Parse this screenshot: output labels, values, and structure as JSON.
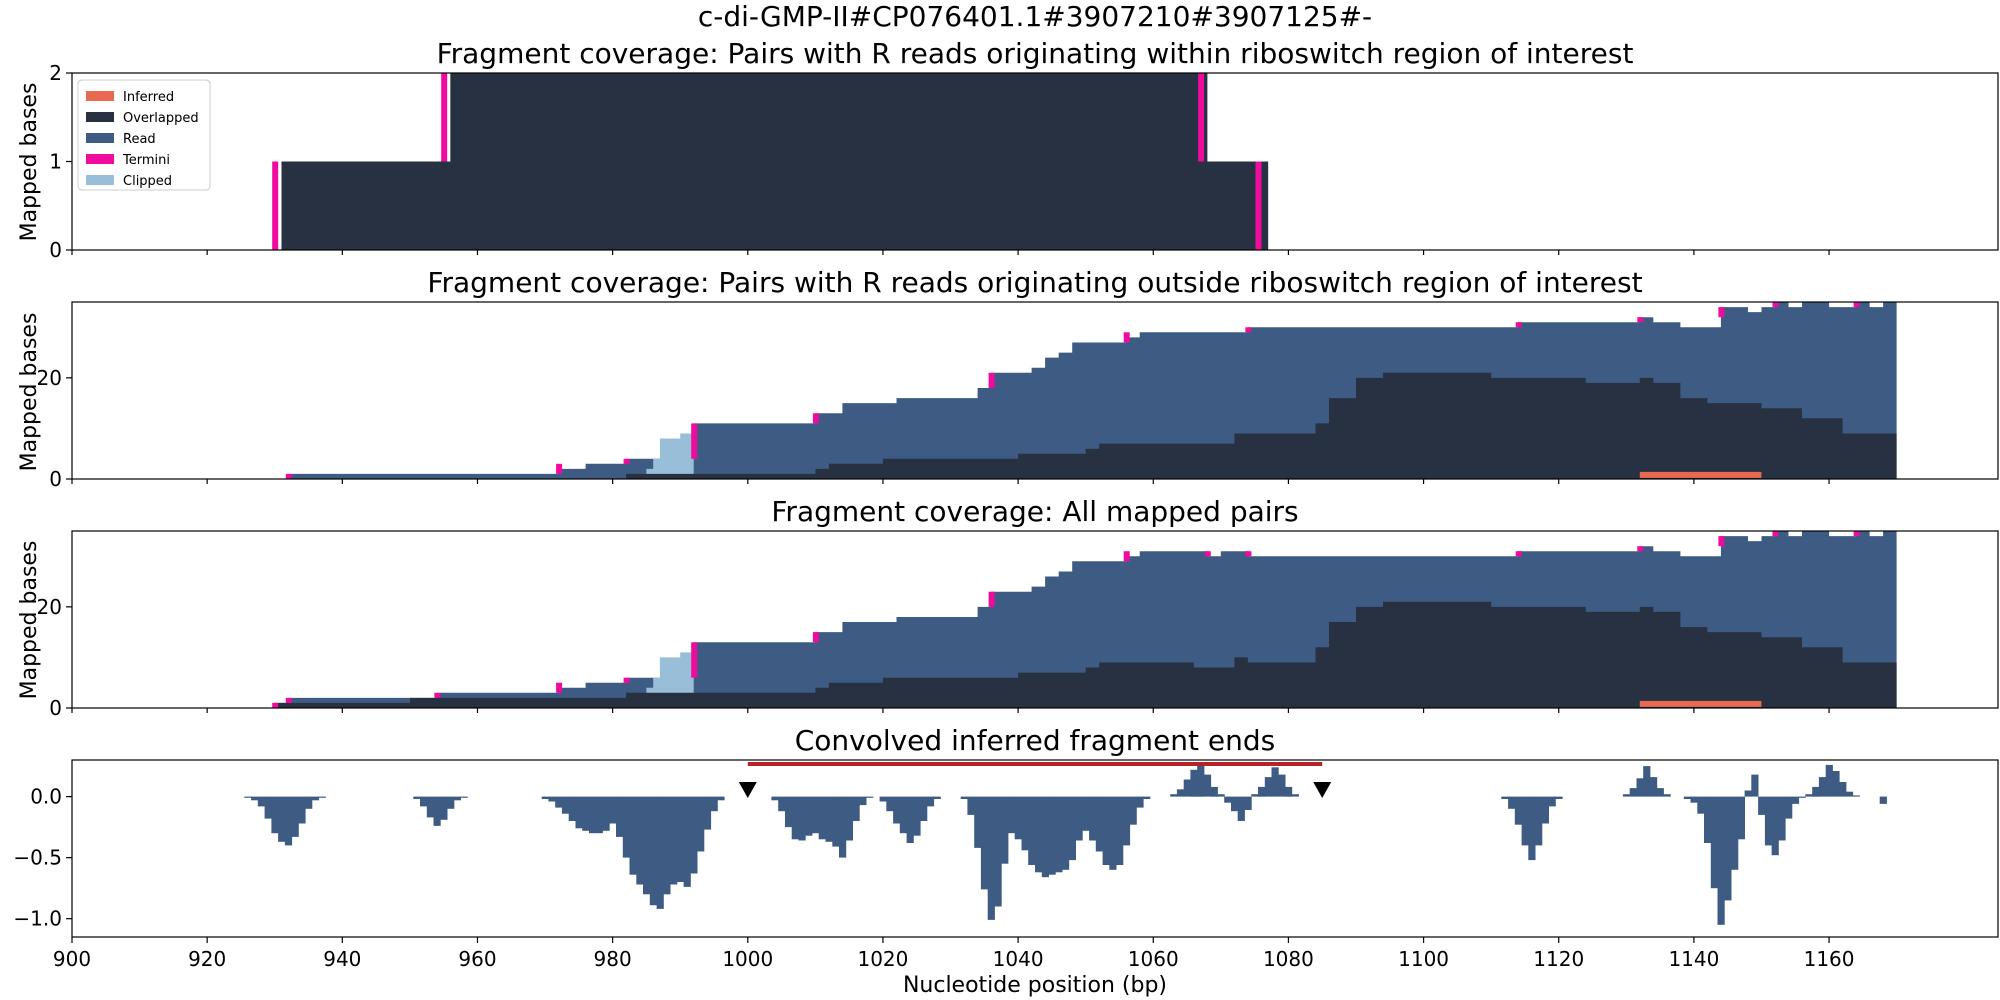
{
  "figure": {
    "suptitle": "c-di-GMP-II#CP076401.1#3907210#3907125#-",
    "xlabel": "Nucleotide position (bp)",
    "xlim": [
      900,
      1185
    ],
    "xticks": [
      900,
      920,
      940,
      960,
      980,
      1000,
      1020,
      1040,
      1060,
      1080,
      1100,
      1120,
      1140,
      1160
    ],
    "colors": {
      "inferred": "#E8694F",
      "overlapped": "#273142",
      "read": "#3E5C83",
      "termini": "#EE0B9D",
      "clipped": "#99BED7",
      "region_bar": "#B5222A",
      "marker": "#000000"
    }
  },
  "legend": [
    "Inferred",
    "Overlapped",
    "Read",
    "Termini",
    "Clipped"
  ],
  "chart_data": [
    {
      "type": "area",
      "title": "Fragment coverage: Pairs with R reads originating within riboswitch region of interest",
      "ylabel": "Mapped bases",
      "ylim": [
        0,
        2
      ],
      "yticks": [
        0,
        1,
        2
      ],
      "overlapped": [
        [
          930.5,
          0
        ],
        [
          931,
          1
        ],
        [
          955,
          1
        ],
        [
          956,
          2
        ],
        [
          1067,
          2
        ],
        [
          1068,
          1
        ],
        [
          1076,
          1
        ],
        [
          1077,
          0
        ]
      ],
      "read": [
        [
          930.5,
          0
        ],
        [
          931,
          1
        ],
        [
          955,
          1
        ],
        [
          956,
          2
        ],
        [
          1067,
          2
        ],
        [
          1068,
          1
        ],
        [
          1076,
          1
        ],
        [
          1077,
          0
        ]
      ],
      "clipped": [],
      "inferred": [],
      "termini": [
        [
          930,
          0,
          1
        ],
        [
          955,
          1,
          2
        ],
        [
          1067,
          1,
          2
        ],
        [
          1075.5,
          0,
          1
        ]
      ]
    },
    {
      "type": "area",
      "title": "Fragment coverage: Pairs with R reads originating outside riboswitch region of interest",
      "ylabel": "Mapped bases",
      "ylim": [
        0,
        35
      ],
      "yticks": [
        0,
        20
      ],
      "read": [
        [
          932,
          1
        ],
        [
          972,
          2
        ],
        [
          976,
          3
        ],
        [
          982,
          4
        ],
        [
          992,
          11
        ],
        [
          1010,
          13
        ],
        [
          1014,
          15
        ],
        [
          1022,
          16
        ],
        [
          1034,
          18
        ],
        [
          1036,
          21
        ],
        [
          1042,
          22
        ],
        [
          1044,
          24
        ],
        [
          1046,
          25
        ],
        [
          1048,
          27
        ],
        [
          1056,
          28
        ],
        [
          1058,
          29
        ],
        [
          1074,
          30
        ],
        [
          1114,
          31
        ],
        [
          1132,
          32
        ],
        [
          1134,
          31
        ],
        [
          1138,
          30
        ],
        [
          1144,
          34
        ],
        [
          1148,
          33
        ],
        [
          1150,
          34
        ],
        [
          1152,
          35
        ],
        [
          1154,
          34
        ],
        [
          1156,
          35
        ],
        [
          1160,
          34
        ],
        [
          1164,
          35
        ],
        [
          1166,
          34
        ],
        [
          1168,
          35
        ]
      ],
      "overlapped": [
        [
          932,
          0
        ],
        [
          950,
          0
        ],
        [
          982,
          1
        ],
        [
          1010,
          2
        ],
        [
          1012,
          3
        ],
        [
          1020,
          4
        ],
        [
          1040,
          5
        ],
        [
          1050,
          6
        ],
        [
          1052,
          7
        ],
        [
          1072,
          9
        ],
        [
          1084,
          11
        ],
        [
          1086,
          16
        ],
        [
          1090,
          20
        ],
        [
          1094,
          21
        ],
        [
          1110,
          20
        ],
        [
          1124,
          19
        ],
        [
          1132,
          20
        ],
        [
          1134,
          19
        ],
        [
          1138,
          16
        ],
        [
          1142,
          15
        ],
        [
          1150,
          14
        ],
        [
          1156,
          12
        ],
        [
          1162,
          9
        ]
      ],
      "clipped": [
        [
          985,
          2
        ],
        [
          986,
          4
        ],
        [
          987,
          8
        ],
        [
          990,
          9
        ],
        [
          992,
          0
        ]
      ],
      "inferred": [
        [
          1132,
          1
        ],
        [
          1150,
          1
        ]
      ],
      "termini": [
        [
          932,
          0,
          1
        ],
        [
          972,
          1,
          3
        ],
        [
          982,
          3,
          4
        ],
        [
          992,
          4,
          11
        ],
        [
          1010,
          11,
          13
        ],
        [
          1036,
          18,
          21
        ],
        [
          1056,
          27,
          29
        ],
        [
          1074,
          29,
          30
        ],
        [
          1114,
          30,
          31
        ],
        [
          1132,
          31,
          32
        ],
        [
          1144,
          32,
          34
        ],
        [
          1152,
          34,
          35
        ],
        [
          1164,
          34,
          35
        ]
      ]
    },
    {
      "type": "area",
      "title": "Fragment coverage: All mapped pairs",
      "ylabel": "Mapped bases",
      "ylim": [
        0,
        35
      ],
      "yticks": [
        0,
        20
      ],
      "read": [
        [
          930,
          1
        ],
        [
          932,
          2
        ],
        [
          954,
          3
        ],
        [
          972,
          4
        ],
        [
          976,
          5
        ],
        [
          982,
          6
        ],
        [
          992,
          13
        ],
        [
          1010,
          15
        ],
        [
          1014,
          17
        ],
        [
          1022,
          18
        ],
        [
          1034,
          20
        ],
        [
          1036,
          23
        ],
        [
          1042,
          24
        ],
        [
          1044,
          26
        ],
        [
          1046,
          27
        ],
        [
          1048,
          29
        ],
        [
          1056,
          30
        ],
        [
          1058,
          31
        ],
        [
          1068,
          30
        ],
        [
          1070,
          31
        ],
        [
          1074,
          30
        ],
        [
          1076,
          30
        ],
        [
          1114,
          31
        ],
        [
          1132,
          32
        ],
        [
          1134,
          31
        ],
        [
          1138,
          30
        ],
        [
          1144,
          34
        ],
        [
          1148,
          33
        ],
        [
          1150,
          34
        ],
        [
          1152,
          35
        ],
        [
          1154,
          34
        ],
        [
          1156,
          35
        ],
        [
          1160,
          34
        ],
        [
          1164,
          35
        ],
        [
          1166,
          34
        ],
        [
          1168,
          35
        ]
      ],
      "overlapped": [
        [
          930,
          1
        ],
        [
          950,
          2
        ],
        [
          982,
          3
        ],
        [
          1010,
          4
        ],
        [
          1012,
          5
        ],
        [
          1020,
          6
        ],
        [
          1040,
          7
        ],
        [
          1050,
          8
        ],
        [
          1052,
          9
        ],
        [
          1066,
          8
        ],
        [
          1072,
          10
        ],
        [
          1074,
          9
        ],
        [
          1084,
          12
        ],
        [
          1086,
          17
        ],
        [
          1090,
          20
        ],
        [
          1094,
          21
        ],
        [
          1110,
          20
        ],
        [
          1124,
          19
        ],
        [
          1132,
          20
        ],
        [
          1134,
          19
        ],
        [
          1138,
          16
        ],
        [
          1142,
          15
        ],
        [
          1150,
          14
        ],
        [
          1156,
          12
        ],
        [
          1162,
          9
        ]
      ],
      "clipped": [
        [
          985,
          4
        ],
        [
          986,
          6
        ],
        [
          987,
          10
        ],
        [
          990,
          11
        ],
        [
          992,
          0
        ]
      ],
      "inferred": [
        [
          1132,
          1
        ],
        [
          1150,
          1
        ]
      ],
      "termini": [
        [
          930,
          0,
          1
        ],
        [
          932,
          1,
          2
        ],
        [
          954,
          2,
          3
        ],
        [
          972,
          3,
          5
        ],
        [
          982,
          5,
          6
        ],
        [
          992,
          6,
          13
        ],
        [
          1010,
          13,
          15
        ],
        [
          1036,
          20,
          23
        ],
        [
          1056,
          29,
          31
        ],
        [
          1068,
          30,
          31
        ],
        [
          1074,
          30,
          31
        ],
        [
          1114,
          30,
          31
        ],
        [
          1132,
          31,
          32
        ],
        [
          1144,
          32,
          34
        ],
        [
          1152,
          34,
          35
        ],
        [
          1164,
          34,
          35
        ]
      ]
    },
    {
      "type": "bar",
      "title": "Convolved inferred fragment ends",
      "ylabel": "",
      "ylim": [
        -1.15,
        0.3
      ],
      "yticks": [
        -1.0,
        -0.5,
        0.0
      ],
      "ytick_labels": [
        "−1.0",
        "−0.5",
        "0.0"
      ],
      "region_bar": [
        1000,
        1085
      ],
      "markers": [
        1000,
        1085
      ],
      "bins": [
        [
          926,
          -0.01
        ],
        [
          927,
          -0.03
        ],
        [
          928,
          -0.08
        ],
        [
          929,
          -0.18
        ],
        [
          930,
          -0.3
        ],
        [
          931,
          -0.37
        ],
        [
          932,
          -0.4
        ],
        [
          933,
          -0.33
        ],
        [
          934,
          -0.22
        ],
        [
          935,
          -0.1
        ],
        [
          936,
          -0.03
        ],
        [
          937,
          -0.01
        ],
        [
          951,
          -0.02
        ],
        [
          952,
          -0.08
        ],
        [
          953,
          -0.17
        ],
        [
          954,
          -0.24
        ],
        [
          955,
          -0.19
        ],
        [
          956,
          -0.1
        ],
        [
          957,
          -0.03
        ],
        [
          958,
          -0.01
        ],
        [
          970,
          -0.02
        ],
        [
          971,
          -0.04
        ],
        [
          972,
          -0.09
        ],
        [
          973,
          -0.14
        ],
        [
          974,
          -0.2
        ],
        [
          975,
          -0.26
        ],
        [
          976,
          -0.28
        ],
        [
          977,
          -0.3
        ],
        [
          978,
          -0.3
        ],
        [
          979,
          -0.28
        ],
        [
          980,
          -0.22
        ],
        [
          981,
          -0.33
        ],
        [
          982,
          -0.5
        ],
        [
          983,
          -0.64
        ],
        [
          984,
          -0.72
        ],
        [
          985,
          -0.8
        ],
        [
          986,
          -0.89
        ],
        [
          987,
          -0.92
        ],
        [
          988,
          -0.8
        ],
        [
          989,
          -0.72
        ],
        [
          990,
          -0.7
        ],
        [
          991,
          -0.74
        ],
        [
          992,
          -0.63
        ],
        [
          993,
          -0.45
        ],
        [
          994,
          -0.27
        ],
        [
          995,
          -0.12
        ],
        [
          996,
          -0.03
        ],
        [
          1004,
          -0.03
        ],
        [
          1005,
          -0.12
        ],
        [
          1006,
          -0.25
        ],
        [
          1007,
          -0.35
        ],
        [
          1008,
          -0.36
        ],
        [
          1009,
          -0.32
        ],
        [
          1010,
          -0.3
        ],
        [
          1011,
          -0.35
        ],
        [
          1012,
          -0.37
        ],
        [
          1013,
          -0.41
        ],
        [
          1014,
          -0.5
        ],
        [
          1015,
          -0.36
        ],
        [
          1016,
          -0.2
        ],
        [
          1017,
          -0.07
        ],
        [
          1018,
          -0.01
        ],
        [
          1020,
          -0.04
        ],
        [
          1021,
          -0.12
        ],
        [
          1022,
          -0.22
        ],
        [
          1023,
          -0.3
        ],
        [
          1024,
          -0.38
        ],
        [
          1025,
          -0.32
        ],
        [
          1026,
          -0.2
        ],
        [
          1027,
          -0.08
        ],
        [
          1028,
          -0.02
        ],
        [
          1032,
          -0.02
        ],
        [
          1033,
          -0.15
        ],
        [
          1034,
          -0.42
        ],
        [
          1035,
          -0.76
        ],
        [
          1036,
          -1.01
        ],
        [
          1037,
          -0.9
        ],
        [
          1038,
          -0.55
        ],
        [
          1039,
          -0.3
        ],
        [
          1040,
          -0.35
        ],
        [
          1041,
          -0.44
        ],
        [
          1042,
          -0.56
        ],
        [
          1043,
          -0.62
        ],
        [
          1044,
          -0.66
        ],
        [
          1045,
          -0.64
        ],
        [
          1046,
          -0.62
        ],
        [
          1047,
          -0.6
        ],
        [
          1048,
          -0.52
        ],
        [
          1049,
          -0.36
        ],
        [
          1050,
          -0.28
        ],
        [
          1051,
          -0.36
        ],
        [
          1052,
          -0.45
        ],
        [
          1053,
          -0.56
        ],
        [
          1054,
          -0.6
        ],
        [
          1055,
          -0.56
        ],
        [
          1056,
          -0.4
        ],
        [
          1057,
          -0.23
        ],
        [
          1058,
          -0.09
        ],
        [
          1059,
          -0.02
        ],
        [
          1063,
          0.02
        ],
        [
          1064,
          0.06
        ],
        [
          1065,
          0.14
        ],
        [
          1066,
          0.22
        ],
        [
          1067,
          0.27
        ],
        [
          1068,
          0.18
        ],
        [
          1069,
          0.08
        ],
        [
          1070,
          0.02
        ],
        [
          1071,
          -0.05
        ],
        [
          1072,
          -0.12
        ],
        [
          1073,
          -0.2
        ],
        [
          1074,
          -0.11
        ],
        [
          1075,
          0.02
        ],
        [
          1076,
          0.08
        ],
        [
          1077,
          0.16
        ],
        [
          1078,
          0.24
        ],
        [
          1079,
          0.18
        ],
        [
          1080,
          0.08
        ],
        [
          1081,
          0.02
        ],
        [
          1112,
          -0.02
        ],
        [
          1113,
          -0.1
        ],
        [
          1114,
          -0.23
        ],
        [
          1115,
          -0.4
        ],
        [
          1116,
          -0.52
        ],
        [
          1117,
          -0.4
        ],
        [
          1118,
          -0.22
        ],
        [
          1119,
          -0.08
        ],
        [
          1120,
          -0.02
        ],
        [
          1130,
          0.02
        ],
        [
          1131,
          0.07
        ],
        [
          1132,
          0.15
        ],
        [
          1133,
          0.25
        ],
        [
          1134,
          0.16
        ],
        [
          1135,
          0.07
        ],
        [
          1136,
          0.02
        ],
        [
          1139,
          -0.02
        ],
        [
          1140,
          -0.05
        ],
        [
          1141,
          -0.14
        ],
        [
          1142,
          -0.38
        ],
        [
          1143,
          -0.75
        ],
        [
          1144,
          -1.05
        ],
        [
          1145,
          -0.85
        ],
        [
          1146,
          -0.6
        ],
        [
          1147,
          -0.35
        ],
        [
          1148,
          0.05
        ],
        [
          1149,
          0.18
        ],
        [
          1150,
          -0.15
        ],
        [
          1151,
          -0.4
        ],
        [
          1152,
          -0.48
        ],
        [
          1153,
          -0.36
        ],
        [
          1154,
          -0.18
        ],
        [
          1155,
          -0.06
        ],
        [
          1156,
          -0.01
        ],
        [
          1157,
          0.02
        ],
        [
          1158,
          0.08
        ],
        [
          1159,
          0.16
        ],
        [
          1160,
          0.26
        ],
        [
          1161,
          0.21
        ],
        [
          1162,
          0.12
        ],
        [
          1163,
          0.04
        ],
        [
          1164,
          0.01
        ],
        [
          1168,
          -0.06
        ]
      ]
    }
  ]
}
